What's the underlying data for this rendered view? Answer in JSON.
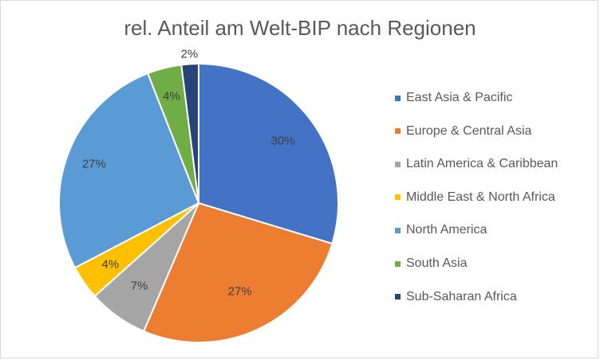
{
  "chart_data": {
    "type": "pie",
    "title": "rel. Anteil am Welt-BIP nach Regionen",
    "categories": [
      "East Asia & Pacific",
      "Europe & Central Asia",
      "Latin America & Caribbean",
      "Middle East & North Africa",
      "North America",
      "South Asia",
      "Sub-Saharan Africa"
    ],
    "values": [
      30,
      27,
      7,
      4,
      27,
      4,
      2
    ],
    "data_labels": [
      "30%",
      "27%",
      "7%",
      "4%",
      "27%",
      "4%",
      "2%"
    ],
    "colors": [
      "#4472c4",
      "#ed7d31",
      "#a5a5a5",
      "#ffc000",
      "#5b9bd5",
      "#70ad47",
      "#264478"
    ],
    "legend_position": "right",
    "start_angle": "12 o'clock",
    "direction": "clockwise"
  }
}
